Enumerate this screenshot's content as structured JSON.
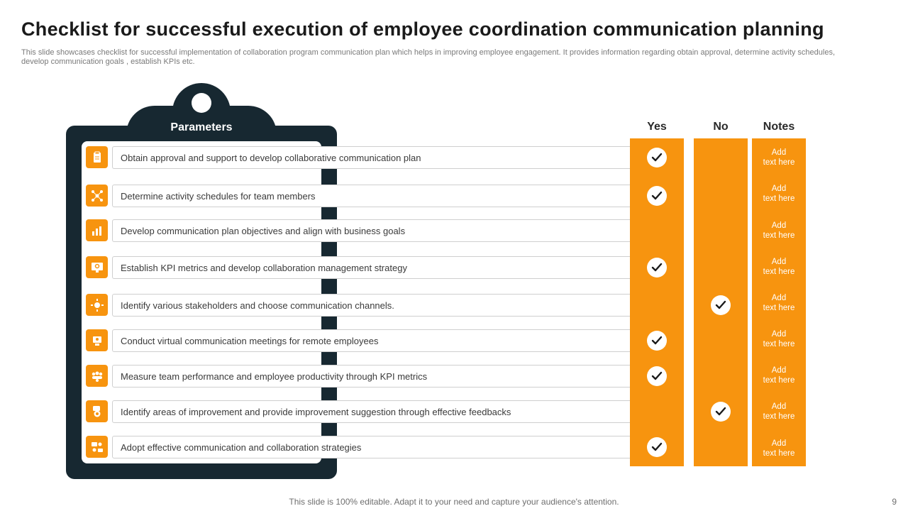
{
  "header": {
    "title": "Checklist for successful execution of employee coordination communication planning",
    "subtitle": "This slide showcases checklist for successful implementation of collaboration program communication plan which helps in improving employee engagement. It provides information regarding obtain approval, determine activity  schedules, develop communication goals , establish KPIs etc."
  },
  "clipboard": {
    "label": "Parameters"
  },
  "columns": {
    "yes": "Yes",
    "no": "No",
    "notes": "Notes"
  },
  "rows": [
    {
      "text": "Obtain approval  and support to develop  collaborative  communication  plan",
      "icon": "clipboard-icon",
      "yes": true,
      "no": false,
      "note": "Add\ntext here"
    },
    {
      "text": "Determine  activity schedules for team members",
      "icon": "network-icon",
      "yes": true,
      "no": false,
      "note": "Add\ntext here"
    },
    {
      "text": "Develop  communication plan objectives and align with business goals",
      "icon": "growth-chart-icon",
      "yes": false,
      "no": false,
      "note": "Add\ntext here"
    },
    {
      "text": "Establish KPI metrics and develop  collaboration  management  strategy",
      "icon": "monitor-search-icon",
      "yes": true,
      "no": false,
      "note": "Add\ntext here"
    },
    {
      "text": "Identify various  stakeholders and choose communication channels.",
      "icon": "gear-people-icon",
      "yes": false,
      "no": true,
      "note": "Add\ntext here"
    },
    {
      "text": "Conduct virtual communication meetings for remote employees",
      "icon": "video-meeting-icon",
      "yes": true,
      "no": false,
      "note": "Add\ntext here"
    },
    {
      "text": "Measure team performance  and employee productivity through  KPI metrics",
      "icon": "team-performance-icon",
      "yes": true,
      "no": false,
      "note": "Add\ntext here"
    },
    {
      "text": "Identify areas of improvement  and provide  improvement  suggestion through  effective  feedbacks",
      "icon": "feedback-icon",
      "yes": false,
      "no": true,
      "note": "Add\ntext here"
    },
    {
      "text": "Adopt effective  communication and collaboration  strategies",
      "icon": "collaboration-icon",
      "yes": true,
      "no": false,
      "note": "Add\ntext here"
    }
  ],
  "footer": {
    "text": "This slide is 100% editable. Adapt it to your need and capture your audience's attention.",
    "page": "9"
  },
  "colors": {
    "accent": "#f7940f",
    "dark": "#172831"
  }
}
